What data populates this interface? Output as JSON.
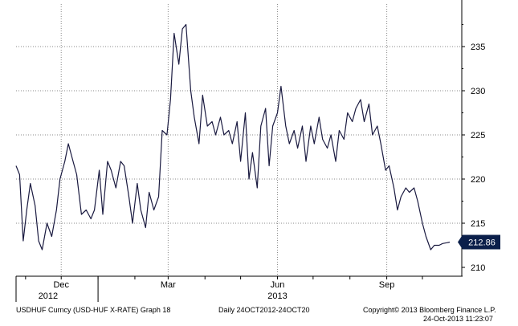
{
  "chart_data": {
    "type": "line",
    "series": [
      {
        "x": [
          "2012-10-24",
          "2012-10-27",
          "2012-10-30",
          "2012-11-02",
          "2012-11-05",
          "2012-11-09",
          "2012-11-12",
          "2012-11-15",
          "2012-11-19",
          "2012-11-23",
          "2012-11-27",
          "2012-11-30",
          "2012-12-04",
          "2012-12-07",
          "2012-12-11",
          "2012-12-14",
          "2012-12-18",
          "2012-12-22",
          "2012-12-26",
          "2012-12-29",
          "2013-01-02",
          "2013-01-05",
          "2013-01-09",
          "2013-01-12",
          "2013-01-16",
          "2013-01-20",
          "2013-01-23",
          "2013-01-27",
          "2013-01-30",
          "2013-02-03",
          "2013-02-06",
          "2013-02-10",
          "2013-02-13",
          "2013-02-17",
          "2013-02-21",
          "2013-02-24",
          "2013-02-28",
          "2013-03-03",
          "2013-03-06",
          "2013-03-10",
          "2013-03-13",
          "2013-03-16",
          "2013-03-20",
          "2013-03-23",
          "2013-03-27",
          "2013-03-30",
          "2013-04-03",
          "2013-04-07",
          "2013-04-10",
          "2013-04-14",
          "2013-04-17",
          "2013-04-21",
          "2013-04-24",
          "2013-04-28",
          "2013-05-01",
          "2013-05-05",
          "2013-05-08",
          "2013-05-11",
          "2013-05-15",
          "2013-05-18",
          "2013-05-22",
          "2013-05-25",
          "2013-05-28",
          "2013-06-01",
          "2013-06-04",
          "2013-06-08",
          "2013-06-11",
          "2013-06-15",
          "2013-06-18",
          "2013-06-22",
          "2013-06-25",
          "2013-06-29",
          "2013-07-02",
          "2013-07-06",
          "2013-07-09",
          "2013-07-13",
          "2013-07-16",
          "2013-07-20",
          "2013-07-23",
          "2013-07-27",
          "2013-07-30",
          "2013-08-03",
          "2013-08-06",
          "2013-08-10",
          "2013-08-13",
          "2013-08-17",
          "2013-08-20",
          "2013-08-24",
          "2013-08-27",
          "2013-08-31",
          "2013-09-03",
          "2013-09-07",
          "2013-09-10",
          "2013-09-13",
          "2013-09-17",
          "2013-09-20",
          "2013-09-24",
          "2013-09-27",
          "2013-10-01",
          "2013-10-04",
          "2013-10-08",
          "2013-10-11",
          "2013-10-15",
          "2013-10-18",
          "2013-10-22",
          "2013-10-24"
        ],
        "values": [
          221.5,
          220.5,
          213.0,
          216.5,
          219.5,
          217.0,
          213.0,
          212.0,
          215.0,
          213.5,
          216.5,
          220.0,
          222.0,
          224.0,
          222.0,
          220.5,
          216.0,
          216.5,
          215.5,
          216.5,
          221.0,
          216.0,
          222.0,
          221.0,
          219.0,
          222.0,
          221.5,
          218.0,
          215.0,
          219.5,
          216.5,
          214.5,
          218.5,
          216.5,
          218.0,
          225.5,
          225.0,
          229.0,
          236.5,
          233.0,
          237.0,
          237.5,
          230.0,
          227.0,
          224.0,
          229.5,
          226.0,
          226.5,
          225.0,
          227.0,
          225.0,
          225.5,
          224.0,
          226.5,
          222.0,
          227.5,
          220.0,
          223.0,
          219.0,
          226.0,
          228.0,
          221.5,
          226.0,
          227.5,
          230.5,
          226.0,
          224.0,
          225.5,
          223.5,
          226.0,
          222.0,
          226.0,
          224.0,
          227.0,
          224.5,
          223.5,
          225.0,
          222.0,
          225.5,
          224.5,
          227.5,
          226.5,
          228.0,
          229.0,
          226.5,
          228.5,
          225.0,
          226.0,
          224.0,
          221.0,
          221.5,
          219.0,
          216.5,
          218.0,
          219.0,
          218.5,
          219.0,
          217.5,
          215.0,
          213.5,
          212.0,
          212.5,
          212.5,
          212.7,
          212.8,
          212.86
        ]
      }
    ],
    "ylim": [
      210,
      240
    ],
    "yticks": [
      "210",
      "215",
      "220",
      "225",
      "230",
      "235"
    ],
    "xticks": [
      {
        "x": "2012-12-01",
        "label": "Dec"
      },
      {
        "x": "2013-03-01",
        "label": "Mar"
      },
      {
        "x": "2013-06-01",
        "label": "Jun"
      },
      {
        "x": "2013-09-01",
        "label": "Sep"
      }
    ],
    "year_labels": [
      {
        "x": "2012-11-20",
        "label": "2012"
      },
      {
        "x": "2013-06-01",
        "label": "2013"
      }
    ],
    "last_value_label": "212.86",
    "line_color": "#1a1a40",
    "grid": true
  },
  "footer": {
    "left": "USDHUF Curncy (USD-HUF X-RATE) Graph 18",
    "center": "Daily 24OCT2012-24OCT20",
    "right1": "Copyright© 2013 Bloomberg Finance L.P.",
    "right2": "24-Oct-2013 11:23:07"
  }
}
